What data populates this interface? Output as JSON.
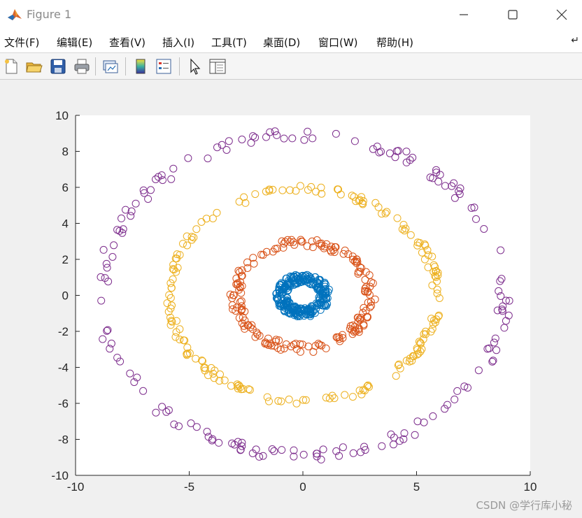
{
  "window": {
    "title": "Figure 1",
    "controls": [
      "minimize",
      "maximize",
      "close"
    ]
  },
  "menu": {
    "items": [
      "文件(F)",
      "编辑(E)",
      "查看(V)",
      "插入(I)",
      "工具(T)",
      "桌面(D)",
      "窗口(W)",
      "帮助(H)"
    ],
    "overflow_icon": "curved-arrow-icon"
  },
  "toolbar": {
    "buttons": [
      {
        "name": "new-figure",
        "icon": "new-file-icon"
      },
      {
        "name": "open-file",
        "icon": "folder-open-icon"
      },
      {
        "name": "save-figure",
        "icon": "save-disk-icon"
      },
      {
        "name": "print-figure",
        "icon": "printer-icon"
      },
      {
        "name": "link-plot",
        "icon": "link-plot-icon"
      },
      {
        "name": "insert-colorbar",
        "icon": "colorbar-icon"
      },
      {
        "name": "insert-legend",
        "icon": "legend-icon"
      },
      {
        "name": "edit-plot",
        "icon": "pointer-arrow-icon"
      },
      {
        "name": "property-inspector",
        "icon": "property-inspector-icon"
      }
    ]
  },
  "watermark": "CSDN @学行库小秘",
  "chart_data": {
    "type": "scatter",
    "title": "",
    "xlabel": "",
    "ylabel": "",
    "xlim": [
      -10,
      10
    ],
    "ylim": [
      -10,
      10
    ],
    "xticks": [
      -10,
      -5,
      0,
      5,
      10
    ],
    "yticks": [
      -10,
      -8,
      -6,
      -4,
      -2,
      0,
      2,
      4,
      6,
      8,
      10
    ],
    "grid": false,
    "legend": "none",
    "marker": "open-circle",
    "series": [
      {
        "shape": "ring",
        "radius_range": [
          0.7,
          1.2
        ],
        "point_count": 260,
        "color": "#0072BD"
      },
      {
        "shape": "ring",
        "radius_range": [
          2.7,
          3.2
        ],
        "point_count": 180,
        "color": "#D95319"
      },
      {
        "shape": "ring",
        "radius_range": [
          5.7,
          6.1
        ],
        "point_count": 190,
        "color": "#EDB120"
      },
      {
        "shape": "ring",
        "radius_range": [
          8.6,
          9.2
        ],
        "point_count": 170,
        "color": "#7E2F8E"
      }
    ]
  }
}
